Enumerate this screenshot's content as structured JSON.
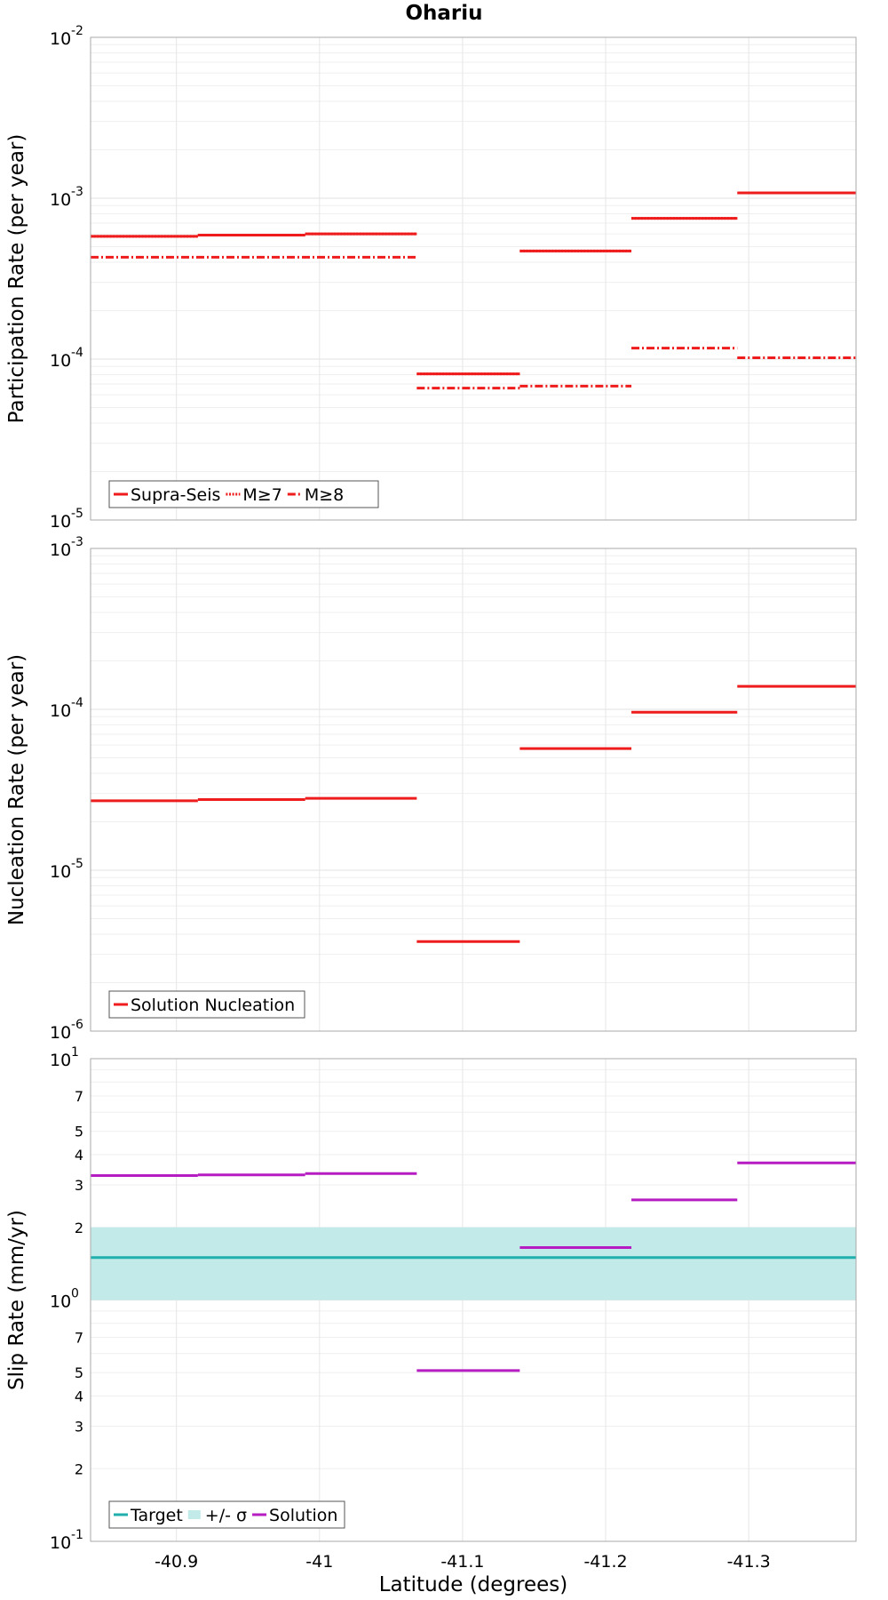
{
  "chart_data": [
    {
      "type": "line",
      "title": "Ohariu",
      "ylabel": "Participation Rate (per year)",
      "xlabel": "",
      "yscale": "log",
      "ylim": [
        1e-05,
        0.01
      ],
      "xlim": [
        -40.84,
        -41.375
      ],
      "xticks": [
        -40.9,
        -41,
        -41.1,
        -41.2,
        -41.3
      ],
      "grid": true,
      "legend_position": "bottom-left",
      "series": [
        {
          "name": "Supra-Seis",
          "style": "solid",
          "color": "#ee1c1c",
          "segments": [
            {
              "x": [
                -40.84,
                -40.915
              ],
              "y": 0.00058
            },
            {
              "x": [
                -40.915,
                -40.99
              ],
              "y": 0.00059
            },
            {
              "x": [
                -40.99,
                -41.068
              ],
              "y": 0.0006
            },
            {
              "x": [
                -41.068,
                -41.14
              ],
              "y": 8.1e-05
            },
            {
              "x": [
                -41.14,
                -41.218
              ],
              "y": 0.00047
            },
            {
              "x": [
                -41.218,
                -41.292
              ],
              "y": 0.00075
            },
            {
              "x": [
                -41.292,
                -41.375
              ],
              "y": 0.00108
            }
          ]
        },
        {
          "name": "M≥7",
          "style": "dotted",
          "color": "#ee1c1c",
          "segments": [
            {
              "x": [
                -40.84,
                -40.915
              ],
              "y": 0.00058
            },
            {
              "x": [
                -40.915,
                -40.99
              ],
              "y": 0.00059
            },
            {
              "x": [
                -40.99,
                -41.068
              ],
              "y": 0.0006
            },
            {
              "x": [
                -41.068,
                -41.14
              ],
              "y": 8.1e-05
            },
            {
              "x": [
                -41.14,
                -41.218
              ],
              "y": 0.00047
            },
            {
              "x": [
                -41.218,
                -41.292
              ],
              "y": 0.00075
            }
          ]
        },
        {
          "name": "M≥8",
          "style": "dashdot",
          "color": "#ee1c1c",
          "segments": [
            {
              "x": [
                -40.84,
                -41.068
              ],
              "y": 0.00043
            },
            {
              "x": [
                -41.068,
                -41.14
              ],
              "y": 6.6e-05
            },
            {
              "x": [
                -41.14,
                -41.218
              ],
              "y": 6.8e-05
            },
            {
              "x": [
                -41.218,
                -41.292
              ],
              "y": 0.000117
            },
            {
              "x": [
                -41.292,
                -41.375
              ],
              "y": 0.000102
            }
          ]
        }
      ]
    },
    {
      "type": "line",
      "title": "",
      "ylabel": "Nucleation Rate (per year)",
      "xlabel": "",
      "yscale": "log",
      "ylim": [
        1e-06,
        0.001
      ],
      "xlim": [
        -40.84,
        -41.375
      ],
      "xticks": [
        -40.9,
        -41,
        -41.1,
        -41.2,
        -41.3
      ],
      "grid": true,
      "legend_position": "bottom-left",
      "series": [
        {
          "name": "Solution Nucleation",
          "style": "solid",
          "color": "#ee1c1c",
          "segments": [
            {
              "x": [
                -40.84,
                -40.915
              ],
              "y": 2.7e-05
            },
            {
              "x": [
                -40.915,
                -40.99
              ],
              "y": 2.75e-05
            },
            {
              "x": [
                -40.99,
                -41.068
              ],
              "y": 2.8e-05
            },
            {
              "x": [
                -41.068,
                -41.14
              ],
              "y": 3.6e-06
            },
            {
              "x": [
                -41.14,
                -41.218
              ],
              "y": 5.7e-05
            },
            {
              "x": [
                -41.218,
                -41.292
              ],
              "y": 9.6e-05
            },
            {
              "x": [
                -41.292,
                -41.375
              ],
              "y": 0.000139
            }
          ]
        }
      ]
    },
    {
      "type": "line",
      "title": "",
      "ylabel": "Slip Rate (mm/yr)",
      "xlabel": "Latitude (degrees)",
      "yscale": "log",
      "ylim": [
        0.1,
        10
      ],
      "xlim": [
        -40.84,
        -41.375
      ],
      "xticks": [
        -40.9,
        -41,
        -41.1,
        -41.2,
        -41.3
      ],
      "grid": true,
      "legend_position": "bottom-left",
      "band": {
        "name": "+/- σ",
        "low": 1.0,
        "high": 2.0,
        "color": "#c2eae9"
      },
      "series": [
        {
          "name": "Target",
          "style": "solid",
          "color": "#1fb0ad",
          "segments": [
            {
              "x": [
                -40.84,
                -41.375
              ],
              "y": 1.5
            }
          ]
        },
        {
          "name": "Solution",
          "style": "solid",
          "color": "#b51cc2",
          "segments": [
            {
              "x": [
                -40.84,
                -40.915
              ],
              "y": 3.28
            },
            {
              "x": [
                -40.915,
                -40.99
              ],
              "y": 3.3
            },
            {
              "x": [
                -40.99,
                -41.068
              ],
              "y": 3.34
            },
            {
              "x": [
                -41.068,
                -41.14
              ],
              "y": 0.51
            },
            {
              "x": [
                -41.14,
                -41.218
              ],
              "y": 1.65
            },
            {
              "x": [
                -41.218,
                -41.292
              ],
              "y": 2.6
            },
            {
              "x": [
                -41.292,
                -41.375
              ],
              "y": 3.7
            }
          ]
        }
      ]
    }
  ]
}
